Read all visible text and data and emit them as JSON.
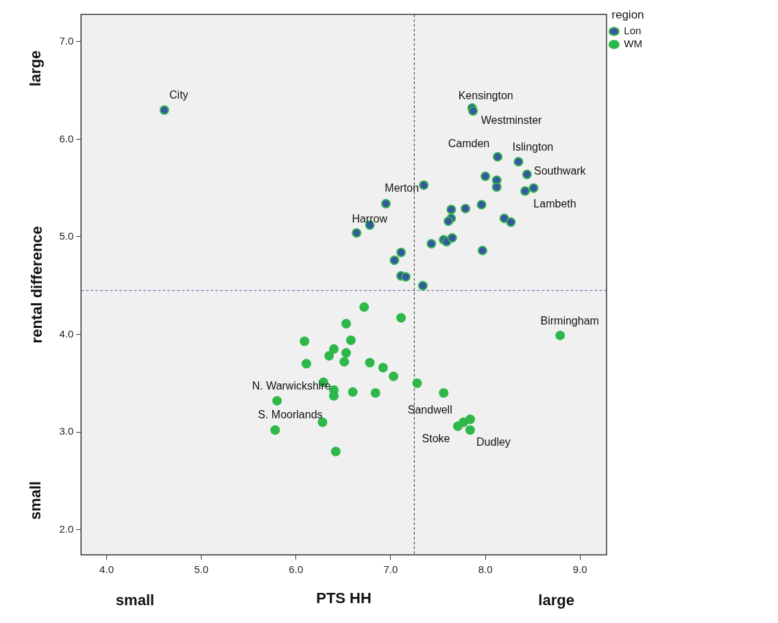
{
  "chart_data": {
    "type": "scatter",
    "xlabel": "PTS HH",
    "ylabel": "rental difference",
    "legend_title": "region",
    "legend": "top right",
    "marker": "circle",
    "xlim": [
      3.73,
      9.28
    ],
    "xticks": [
      {
        "value": 4,
        "label": "4.0"
      },
      {
        "value": 5,
        "label": "5.0"
      },
      {
        "value": 6,
        "label": "6.0"
      },
      {
        "value": 7,
        "label": "7.0"
      },
      {
        "value": 8,
        "label": "8.0"
      },
      {
        "value": 9,
        "label": "9.0"
      }
    ],
    "ylim": [
      1.74,
      7.28
    ],
    "yticks": [
      {
        "value": 2,
        "label": "2.0"
      },
      {
        "value": 3,
        "label": "3.0"
      },
      {
        "value": 4,
        "label": "4.0"
      },
      {
        "value": 5,
        "label": "5.0"
      },
      {
        "value": 6,
        "label": "6.0"
      },
      {
        "value": 7,
        "label": "7.0"
      }
    ],
    "ref_lines": [
      {
        "axis": "x",
        "value": 7.25,
        "color": "#333333",
        "line_style": "dashed"
      },
      {
        "axis": "y",
        "value": 4.45,
        "color": "#5a5aa0",
        "line_style": "dashed"
      }
    ],
    "series": [
      {
        "name": "Lon",
        "color": "#3a55a4",
        "x": [
          4.61,
          7.86,
          7.87,
          8.13,
          8.35,
          8.44,
          8.42,
          8.51,
          7.35,
          6.95,
          6.78,
          6.64,
          8.0,
          8.12,
          8.12,
          7.79,
          7.96,
          7.64,
          7.64,
          7.61,
          8.2,
          8.27,
          7.43,
          7.56,
          7.59,
          7.65,
          7.97,
          7.11,
          7.04,
          7.11,
          7.16,
          7.34
        ],
        "values": [
          6.3,
          6.32,
          6.29,
          5.82,
          5.77,
          5.64,
          5.47,
          5.5,
          5.53,
          5.34,
          5.12,
          5.04,
          5.62,
          5.58,
          5.51,
          5.29,
          5.33,
          5.28,
          5.19,
          5.16,
          5.19,
          5.15,
          4.93,
          4.97,
          4.95,
          4.99,
          4.86,
          4.84,
          4.76,
          4.6,
          4.59,
          4.5
        ]
      },
      {
        "name": "WM",
        "color": "#2fb84a",
        "x": [
          6.72,
          7.11,
          6.53,
          6.09,
          6.58,
          6.4,
          6.35,
          6.53,
          6.51,
          6.11,
          6.78,
          6.92,
          7.03,
          7.28,
          6.29,
          6.4,
          6.4,
          6.6,
          6.84,
          7.56,
          5.8,
          5.78,
          6.28,
          6.42,
          7.71,
          7.77,
          7.84,
          7.84,
          8.79
        ],
        "values": [
          4.28,
          4.17,
          4.11,
          3.93,
          3.94,
          3.85,
          3.78,
          3.81,
          3.72,
          3.7,
          3.71,
          3.66,
          3.57,
          3.5,
          3.51,
          3.43,
          3.37,
          3.41,
          3.4,
          3.4,
          3.32,
          3.02,
          3.1,
          2.8,
          3.06,
          3.1,
          3.13,
          3.02,
          3.99
        ]
      }
    ],
    "annotations": [
      "small",
      "large",
      "large",
      "small",
      {
        "text": "City",
        "x": 4.61,
        "y": 6.3
      },
      {
        "text": "Kensington",
        "x": 7.86,
        "y": 6.32
      },
      {
        "text": "Westminster",
        "x": 7.87,
        "y": 6.29
      },
      {
        "text": "Camden",
        "x": 8.13,
        "y": 5.82
      },
      {
        "text": "Islington",
        "x": 8.35,
        "y": 5.77
      },
      {
        "text": "Southwark",
        "x": 8.44,
        "y": 5.64
      },
      {
        "text": "Lambeth",
        "x": 8.51,
        "y": 5.5
      },
      {
        "text": "Merton",
        "x": 7.35,
        "y": 5.53
      },
      {
        "text": "Harrow",
        "x": 6.64,
        "y": 5.04
      },
      {
        "text": "Birmingham",
        "x": 8.79,
        "y": 3.99
      },
      {
        "text": "N. Warwickshire",
        "x": 5.8,
        "y": 3.32
      },
      {
        "text": "S. Moorlands",
        "x": 5.78,
        "y": 3.02
      },
      {
        "text": "Sandwell",
        "x": 7.56,
        "y": 3.4
      },
      {
        "text": "Stoke",
        "x": 7.71,
        "y": 3.06
      },
      {
        "text": "Dudley",
        "x": 7.84,
        "y": 3.02
      }
    ]
  }
}
